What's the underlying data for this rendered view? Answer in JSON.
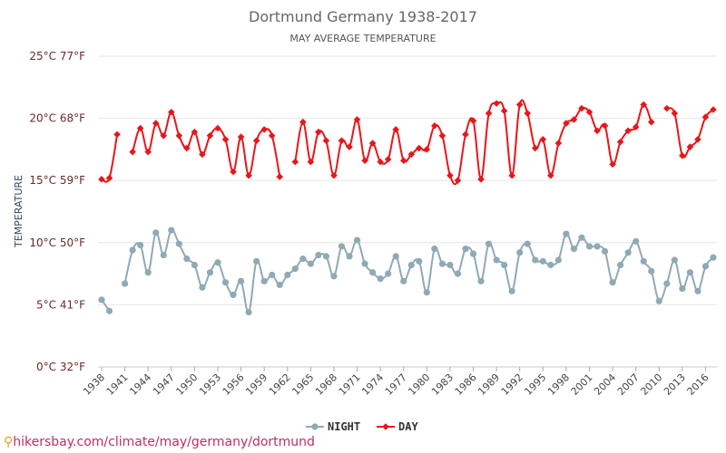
{
  "chart_data": {
    "type": "line",
    "title": "Dortmund Germany 1938-2017",
    "subtitle": "MAY AVERAGE TEMPERATURE",
    "ylabel": "TEMPERATURE",
    "xlabel": "",
    "xlim": [
      1938,
      2017
    ],
    "ylim": [
      0,
      25
    ],
    "y_ticks": [
      0,
      5,
      10,
      15,
      20,
      25
    ],
    "y_tick_labels": [
      "0°C 32°F",
      "5°C 41°F",
      "10°C 50°F",
      "15°C 59°F",
      "20°C 68°F",
      "25°C 77°F"
    ],
    "x_ticks": [
      1938,
      1941,
      1944,
      1947,
      1950,
      1953,
      1956,
      1959,
      1962,
      1965,
      1968,
      1971,
      1974,
      1977,
      1980,
      1983,
      1986,
      1989,
      1992,
      1995,
      1998,
      2001,
      2004,
      2007,
      2010,
      2013,
      2016
    ],
    "grid": true,
    "legend_position": "bottom",
    "series": [
      {
        "name": "NIGHT",
        "color": "#8faab5",
        "marker": "circle",
        "x": [
          1938,
          1939,
          1941,
          1942,
          1943,
          1944,
          1945,
          1946,
          1947,
          1948,
          1949,
          1950,
          1951,
          1952,
          1953,
          1954,
          1955,
          1956,
          1957,
          1958,
          1959,
          1960,
          1961,
          1962,
          1963,
          1964,
          1965,
          1966,
          1967,
          1968,
          1969,
          1970,
          1971,
          1972,
          1973,
          1974,
          1975,
          1976,
          1977,
          1978,
          1979,
          1980,
          1981,
          1982,
          1983,
          1984,
          1985,
          1986,
          1987,
          1988,
          1989,
          1990,
          1991,
          1992,
          1993,
          1994,
          1995,
          1996,
          1997,
          1998,
          1999,
          2000,
          2001,
          2002,
          2003,
          2004,
          2005,
          2006,
          2007,
          2008,
          2009,
          2010,
          2011,
          2012,
          2013,
          2014,
          2015,
          2016,
          2017
        ],
        "y": [
          5.4,
          4.5,
          6.7,
          9.4,
          9.8,
          7.6,
          10.8,
          9.0,
          11.0,
          9.9,
          8.7,
          8.2,
          6.4,
          7.6,
          8.4,
          6.8,
          5.8,
          6.9,
          4.4,
          8.5,
          6.9,
          7.4,
          6.6,
          7.4,
          7.9,
          8.7,
          8.3,
          9.0,
          8.9,
          7.3,
          9.7,
          8.9,
          10.2,
          8.3,
          7.6,
          7.1,
          7.5,
          8.9,
          6.9,
          8.2,
          8.5,
          6.0,
          9.5,
          8.3,
          8.2,
          7.5,
          9.5,
          9.1,
          6.9,
          9.9,
          8.6,
          8.2,
          6.1,
          9.2,
          9.9,
          8.6,
          8.5,
          8.2,
          8.6,
          10.7,
          9.5,
          10.4,
          9.7,
          9.7,
          9.3,
          6.8,
          8.2,
          9.2,
          10.1,
          8.5,
          7.7,
          5.3,
          6.7,
          8.6,
          6.3,
          7.6,
          6.1,
          8.1,
          8.8
        ]
      },
      {
        "name": "DAY",
        "color": "#e8161a",
        "marker": "diamond",
        "segments_x": [
          [
            1938,
            1939,
            1940
          ],
          [
            1942,
            1943,
            1944,
            1945,
            1946,
            1947,
            1948,
            1949,
            1950,
            1951,
            1952,
            1953,
            1954,
            1955,
            1956,
            1957,
            1958,
            1959,
            1960,
            1961
          ],
          [
            1963,
            1964,
            1965,
            1966,
            1967,
            1968,
            1969,
            1970,
            1971,
            1972,
            1973,
            1974,
            1975,
            1976,
            1977,
            1978,
            1979,
            1980,
            1981,
            1982,
            1983,
            1984,
            1985,
            1986,
            1987,
            1988,
            1989,
            1990,
            1991,
            1992,
            1993,
            1994,
            1995,
            1996,
            1997,
            1998,
            1999,
            2000,
            2001,
            2002,
            2003,
            2004,
            2005,
            2006,
            2007,
            2008,
            2009
          ],
          [
            2011,
            2012,
            2013,
            2014,
            2015,
            2016,
            2017
          ]
        ],
        "segments_y": [
          [
            15.1,
            15.2,
            18.7
          ],
          [
            17.3,
            19.2,
            17.3,
            19.6,
            18.6,
            20.5,
            18.6,
            17.6,
            18.9,
            17.1,
            18.6,
            19.2,
            18.3,
            15.7,
            18.5,
            15.4,
            18.2,
            19.1,
            18.6,
            15.3
          ],
          [
            16.5,
            19.7,
            16.5,
            18.9,
            18.2,
            15.4,
            18.2,
            17.7,
            19.9,
            16.6,
            18.0,
            16.5,
            16.7,
            19.1,
            16.6,
            17.1,
            17.6,
            17.5,
            19.4,
            18.6,
            15.4,
            15.0,
            18.7,
            19.8,
            15.1,
            20.4,
            21.2,
            20.6,
            15.4,
            21.1,
            20.4,
            17.6,
            18.3,
            15.4,
            18.0,
            19.6,
            19.9,
            20.8,
            20.5,
            19.0,
            19.4,
            16.3,
            18.1,
            19.0,
            19.3,
            21.1,
            19.7
          ],
          [
            20.8,
            20.4,
            17.0,
            17.7,
            18.3,
            20.1,
            20.7
          ]
        ]
      }
    ]
  },
  "watermark": "hikersbay.com/climate/may/germany/dortmund",
  "watermark_icon": "location-pin-icon"
}
